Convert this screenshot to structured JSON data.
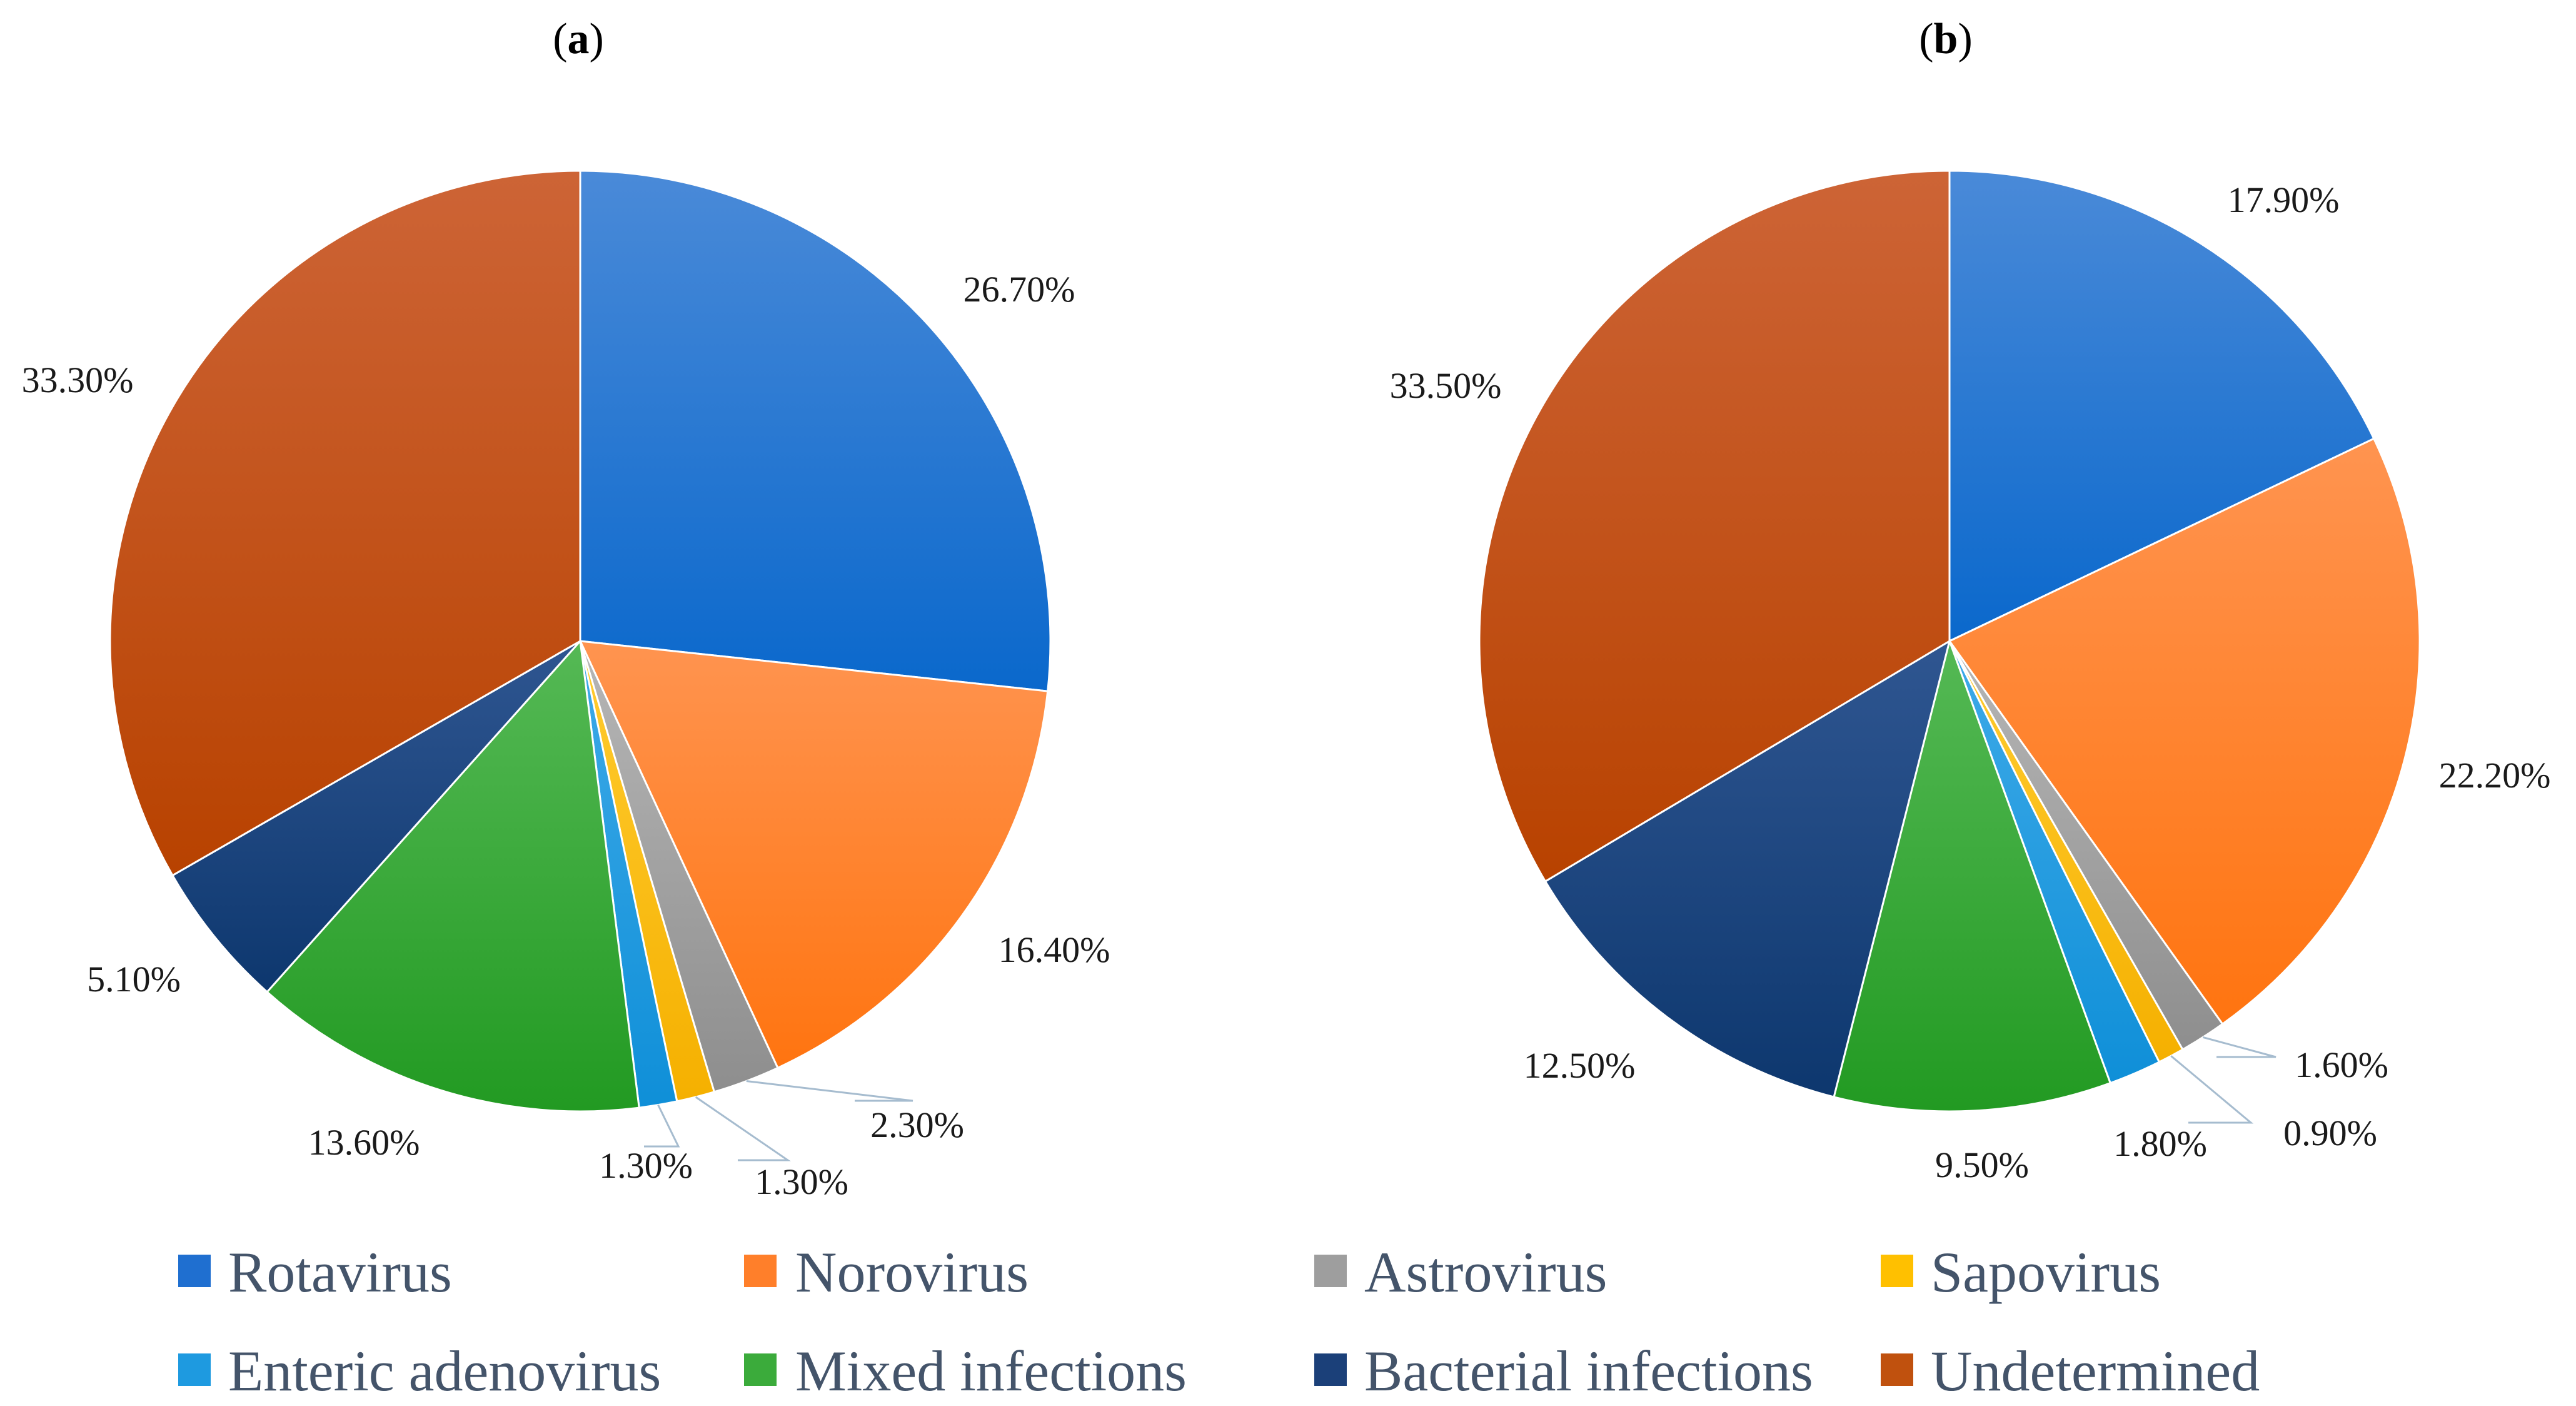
{
  "chart_data": [
    {
      "type": "pie",
      "title": "(a)",
      "title_letter": "a",
      "start_angle_deg": 90,
      "direction": "clockwise",
      "categories": [
        "Rotavirus",
        "Norovirus",
        "Astrovirus",
        "Sapovirus",
        "Enteric adenovirus",
        "Mixed infections",
        "Bacterial infections",
        "Undetermined"
      ],
      "values": [
        26.7,
        16.4,
        2.3,
        1.3,
        1.3,
        13.6,
        5.1,
        33.3
      ],
      "labels": [
        "26.70%",
        "16.40%",
        "2.30%",
        "1.30%",
        "1.30%",
        "13.60%",
        "5.10%",
        "33.30%"
      ]
    },
    {
      "type": "pie",
      "title": "(b)",
      "title_letter": "b",
      "start_angle_deg": 90,
      "direction": "clockwise",
      "categories": [
        "Rotavirus",
        "Norovirus",
        "Astrovirus",
        "Sapovirus",
        "Enteric adenovirus",
        "Mixed infections",
        "Bacterial infections",
        "Undetermined"
      ],
      "values": [
        17.9,
        22.2,
        1.6,
        0.9,
        1.8,
        9.5,
        12.5,
        33.5
      ],
      "labels": [
        "17.90%",
        "22.20%",
        "1.60%",
        "0.90%",
        "1.80%",
        "9.50%",
        "12.50%",
        "33.50%"
      ]
    }
  ],
  "legend": {
    "entries": [
      {
        "label": "Rotavirus",
        "color": "#1f6fd0"
      },
      {
        "label": "Norovirus",
        "color": "#ff7f2a"
      },
      {
        "label": "Astrovirus",
        "color": "#9e9e9e"
      },
      {
        "label": "Sapovirus",
        "color": "#ffc000"
      },
      {
        "label": "Enteric adenovirus",
        "color": "#1e9ae0"
      },
      {
        "label": "Mixed infections",
        "color": "#3bab3b"
      },
      {
        "label": "Bacterial infections",
        "color": "#1b4079"
      },
      {
        "label": "Undetermined",
        "color": "#c0510e"
      }
    ]
  },
  "colors": {
    "Rotavirus": [
      "#4a8ad8",
      "#0a68cc"
    ],
    "Norovirus": [
      "#ff9450",
      "#ff7410"
    ],
    "Astrovirus": [
      "#b6b6b6",
      "#8e8e8e"
    ],
    "Sapovirus": [
      "#ffcc30",
      "#f5b000"
    ],
    "Enteric adenovirus": [
      "#3eaae8",
      "#0f8fd8"
    ],
    "Mixed infections": [
      "#55b955",
      "#229a22"
    ],
    "Bacterial infections": [
      "#2f5691",
      "#0d376e"
    ],
    "Undetermined": [
      "#cd6436",
      "#b84200"
    ]
  }
}
